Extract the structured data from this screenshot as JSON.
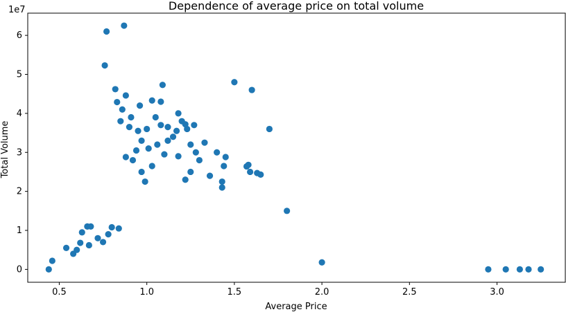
{
  "chart_data": {
    "type": "scatter",
    "title": "Dependence of average price on total volume",
    "xlabel": "Average Price",
    "ylabel": "Total Volume",
    "y_scale_label": "1e7",
    "xlim": [
      0.32,
      3.39
    ],
    "ylim": [
      -0.33,
      6.57
    ],
    "y_unit_multiplier": 10000000,
    "xticks": [
      0.5,
      1.0,
      1.5,
      2.0,
      2.5,
      3.0
    ],
    "xtick_labels": [
      "0.5",
      "1.0",
      "1.5",
      "2.0",
      "2.5",
      "3.0"
    ],
    "yticks": [
      0,
      1,
      2,
      3,
      4,
      5,
      6
    ],
    "ytick_labels": [
      "0",
      "1",
      "2",
      "3",
      "4",
      "5",
      "6"
    ],
    "grid": false,
    "marker_color": "#1f77b4",
    "series": [
      {
        "values": [
          [
            0.77,
            6.1
          ],
          [
            0.87,
            6.25
          ],
          [
            0.76,
            5.23
          ],
          [
            0.82,
            4.62
          ],
          [
            1.09,
            4.73
          ],
          [
            0.83,
            4.29
          ],
          [
            0.88,
            4.46
          ],
          [
            1.03,
            4.33
          ],
          [
            0.86,
            4.1
          ],
          [
            0.85,
            3.8
          ],
          [
            0.9,
            3.65
          ],
          [
            0.95,
            3.55
          ],
          [
            0.97,
            3.3
          ],
          [
            1.0,
            3.6
          ],
          [
            1.05,
            3.9
          ],
          [
            1.08,
            3.7
          ],
          [
            1.12,
            3.65
          ],
          [
            1.15,
            3.4
          ],
          [
            1.2,
            3.8
          ],
          [
            1.23,
            3.6
          ],
          [
            1.25,
            3.2
          ],
          [
            1.28,
            3.0
          ],
          [
            1.3,
            2.8
          ],
          [
            1.33,
            3.25
          ],
          [
            1.4,
            3.0
          ],
          [
            1.45,
            2.88
          ],
          [
            1.44,
            2.65
          ],
          [
            1.43,
            2.25
          ],
          [
            1.43,
            2.1
          ],
          [
            1.36,
            2.4
          ],
          [
            1.25,
            2.5
          ],
          [
            1.22,
            2.3
          ],
          [
            1.18,
            2.9
          ],
          [
            1.1,
            2.95
          ],
          [
            1.03,
            2.65
          ],
          [
            0.99,
            2.25
          ],
          [
            0.97,
            2.5
          ],
          [
            0.92,
            2.8
          ],
          [
            0.88,
            2.88
          ],
          [
            0.94,
            3.05
          ],
          [
            1.01,
            3.1
          ],
          [
            1.06,
            3.2
          ],
          [
            1.12,
            3.3
          ],
          [
            1.17,
            3.55
          ],
          [
            1.22,
            3.72
          ],
          [
            1.27,
            3.7
          ],
          [
            1.18,
            4.0
          ],
          [
            1.08,
            4.3
          ],
          [
            0.96,
            4.2
          ],
          [
            0.91,
            3.9
          ],
          [
            1.57,
            2.64
          ],
          [
            1.58,
            2.68
          ],
          [
            1.59,
            2.5
          ],
          [
            1.63,
            2.47
          ],
          [
            1.65,
            2.43
          ],
          [
            1.5,
            4.8
          ],
          [
            1.6,
            4.6
          ],
          [
            1.7,
            3.6
          ],
          [
            1.8,
            1.5
          ],
          [
            2.0,
            0.18
          ],
          [
            0.44,
            0.0
          ],
          [
            0.46,
            0.22
          ],
          [
            0.54,
            0.55
          ],
          [
            0.6,
            0.5
          ],
          [
            0.63,
            0.95
          ],
          [
            0.66,
            1.1
          ],
          [
            0.68,
            1.1
          ],
          [
            0.75,
            0.7
          ],
          [
            0.8,
            1.08
          ],
          [
            0.84,
            1.05
          ],
          [
            0.62,
            0.68
          ],
          [
            0.67,
            0.62
          ],
          [
            0.58,
            0.4
          ],
          [
            0.72,
            0.8
          ],
          [
            0.78,
            0.9
          ],
          [
            3.13,
            0.0
          ],
          [
            3.18,
            0.0
          ],
          [
            3.25,
            0.0
          ],
          [
            3.05,
            0.0
          ],
          [
            2.95,
            0.0
          ]
        ]
      }
    ]
  }
}
